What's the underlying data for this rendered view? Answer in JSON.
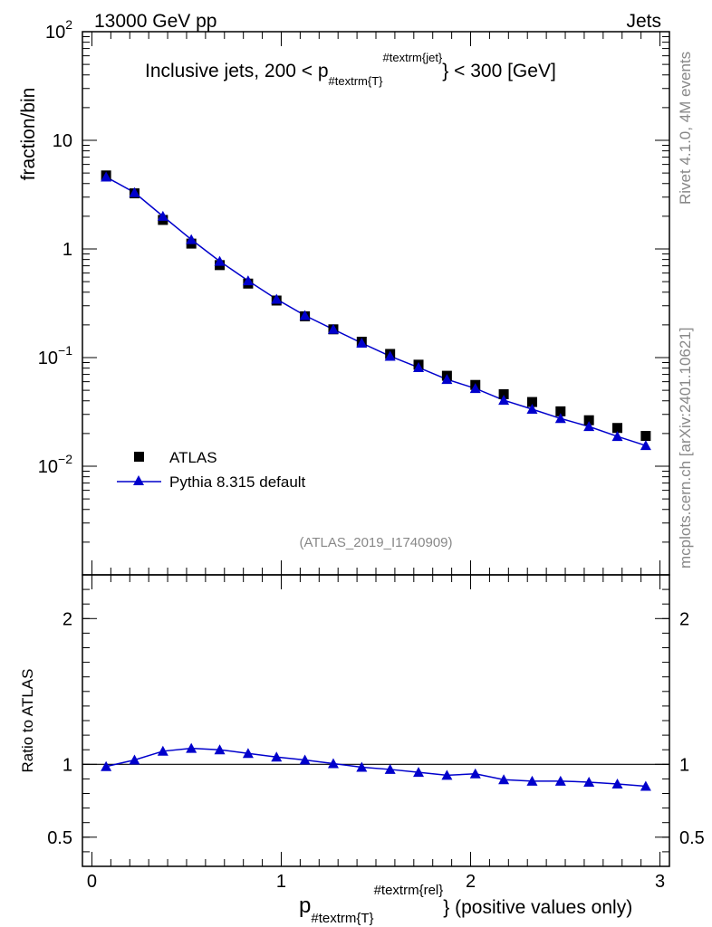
{
  "header": {
    "left_label": "13000 GeV pp",
    "right_label": "Jets"
  },
  "side_labels": {
    "rivet": "Rivet 4.1.0,  4M events",
    "mcplots": "mcplots.cern.ch [arXiv:2401.10621]"
  },
  "chart_data": [
    {
      "type": "scatter",
      "panel": "main",
      "title": "Inclusive jets, 200 < p",
      "title_sub": "#textrm{T}",
      "title_sup": "#textrm{jet}",
      "title_tail": "} < 300 [GeV]",
      "ylabel": "fraction/bin",
      "yscale": "log",
      "ylim": [
        0.001,
        100
      ],
      "xlim": [
        -0.05,
        3.05
      ],
      "y_ticks": [
        {
          "value": 100,
          "label": "10",
          "sup": "2"
        },
        {
          "value": 10,
          "label": "10",
          "sup": ""
        },
        {
          "value": 1,
          "label": "1",
          "sup": ""
        },
        {
          "value": 0.1,
          "label": "10",
          "sup": "−1"
        },
        {
          "value": 0.01,
          "label": "10",
          "sup": "−2"
        }
      ],
      "analysis_id": "(ATLAS_2019_I1740909)",
      "legend_position": "bottom-left",
      "x": [
        0.075,
        0.225,
        0.375,
        0.525,
        0.675,
        0.825,
        0.975,
        1.125,
        1.275,
        1.425,
        1.575,
        1.725,
        1.875,
        2.025,
        2.175,
        2.325,
        2.475,
        2.625,
        2.775,
        2.925
      ],
      "series": [
        {
          "name": "ATLAS",
          "marker": "square",
          "color": "#000000",
          "values": [
            4.75,
            3.25,
            1.85,
            1.12,
            0.71,
            0.48,
            0.335,
            0.24,
            0.182,
            0.14,
            0.108,
            0.086,
            0.068,
            0.056,
            0.046,
            0.039,
            0.032,
            0.0265,
            0.0225,
            0.019
          ]
        },
        {
          "name": "Pythia 8.315 default",
          "marker": "triangle",
          "color": "#0000cc",
          "values": [
            4.6,
            3.3,
            2.0,
            1.22,
            0.77,
            0.51,
            0.345,
            0.244,
            0.182,
            0.136,
            0.103,
            0.081,
            0.063,
            0.052,
            0.0405,
            0.0335,
            0.0275,
            0.0232,
            0.0188,
            0.0155
          ]
        }
      ]
    },
    {
      "type": "line",
      "panel": "ratio",
      "ylabel": "Ratio to ATLAS",
      "xlabel": "p",
      "xlabel_sub": "#textrm{T}",
      "xlabel_sup": "#textrm{rel}",
      "xlabel_tail": "} (positive values only)",
      "ylim": [
        0.3,
        2.3
      ],
      "xlim": [
        -0.05,
        3.05
      ],
      "x_ticks": [
        0,
        1,
        2,
        3
      ],
      "x_tick_labels": [
        "0",
        "1",
        "2",
        "3"
      ],
      "y_ticks": [
        0.5,
        1,
        2
      ],
      "y_tick_labels": [
        "0.5",
        "1",
        "2"
      ],
      "reference_line": 1,
      "x": [
        0.075,
        0.225,
        0.375,
        0.525,
        0.675,
        0.825,
        0.975,
        1.125,
        1.275,
        1.425,
        1.575,
        1.725,
        1.875,
        2.025,
        2.175,
        2.325,
        2.475,
        2.625,
        2.775,
        2.925
      ],
      "series": [
        {
          "name": "Pythia 8.315 default",
          "color": "#0000cc",
          "values": [
            0.985,
            1.03,
            1.09,
            1.11,
            1.1,
            1.075,
            1.05,
            1.03,
            1.005,
            0.98,
            0.965,
            0.945,
            0.925,
            0.935,
            0.895,
            0.885,
            0.885,
            0.878,
            0.865,
            0.85
          ]
        }
      ]
    }
  ]
}
